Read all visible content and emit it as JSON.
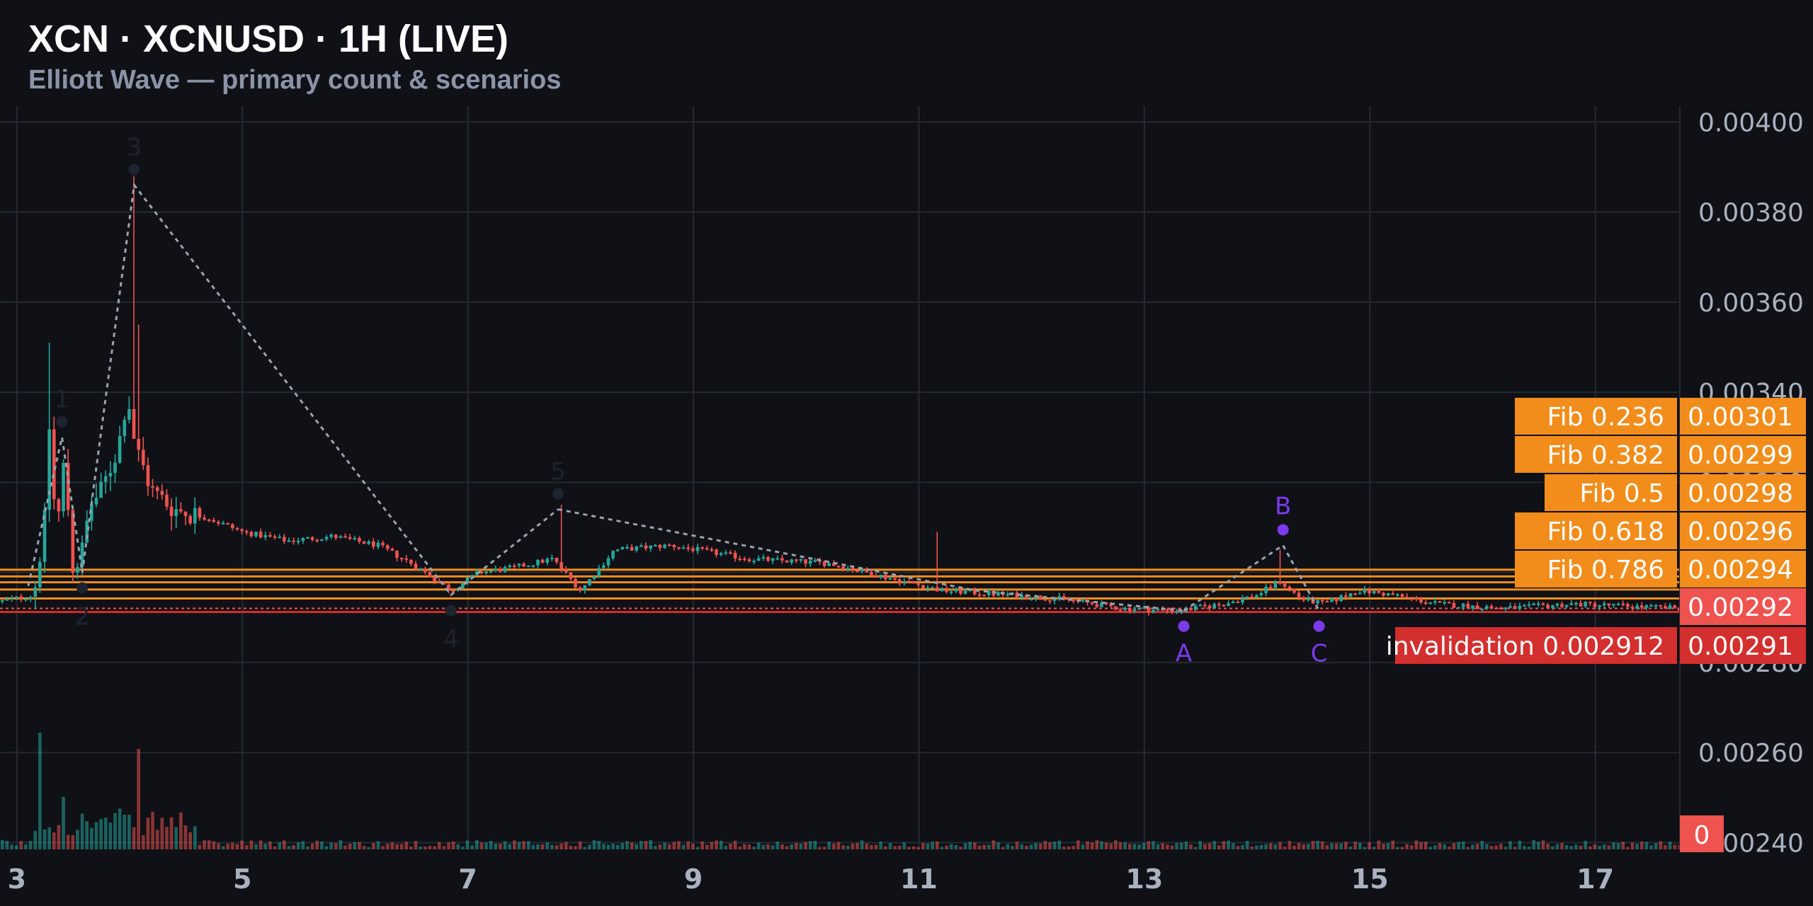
{
  "header": {
    "title": "XCN · XCNUSD · 1H (LIVE)",
    "subtitle": "Elliott Wave — primary count & scenarios"
  },
  "colors": {
    "background": "#0f1117",
    "grid": "#232a33",
    "up": "#26a69a",
    "down": "#ef5350",
    "fib": "#f28c1b",
    "invalidation": "#d32f2f",
    "wave_primary": "#1c2430",
    "wave_alt": "#7c3aed",
    "wave_path": "#9aa3b0"
  },
  "chart_data": {
    "type": "candlestick",
    "x_unit": "day",
    "xlim": [
      2.85,
      17.75
    ],
    "ylim": [
      0.002385,
      0.004035
    ],
    "x_ticks": [
      {
        "x": 3,
        "label": "3"
      },
      {
        "x": 5,
        "label": "5"
      },
      {
        "x": 7,
        "label": "7"
      },
      {
        "x": 9,
        "label": "9"
      },
      {
        "x": 11,
        "label": "11"
      },
      {
        "x": 13,
        "label": "13"
      },
      {
        "x": 15,
        "label": "15"
      },
      {
        "x": 17,
        "label": "17"
      }
    ],
    "y_ticks": [
      {
        "y": 0.0024,
        "label": "0.00240"
      },
      {
        "y": 0.0026,
        "label": "0.00260"
      },
      {
        "y": 0.0028,
        "label": "0.00280"
      },
      {
        "y": 0.003,
        "label": "0.00300"
      },
      {
        "y": 0.0032,
        "label": "0.00320"
      },
      {
        "y": 0.0034,
        "label": "0.00340"
      },
      {
        "y": 0.0036,
        "label": "0.00360"
      },
      {
        "y": 0.0038,
        "label": "0.00380"
      },
      {
        "y": 0.004,
        "label": "0.00400"
      }
    ],
    "price_path": [
      [
        2.85,
        0.002935
      ],
      [
        3.15,
        0.00295
      ],
      [
        3.25,
        0.00312
      ],
      [
        3.28,
        0.00335
      ],
      [
        3.35,
        0.00308
      ],
      [
        3.42,
        0.00325
      ],
      [
        3.5,
        0.003
      ],
      [
        3.58,
        0.00305
      ],
      [
        3.65,
        0.00315
      ],
      [
        3.75,
        0.00318
      ],
      [
        3.9,
        0.00328
      ],
      [
        3.98,
        0.0034
      ],
      [
        4.05,
        0.00328
      ],
      [
        4.2,
        0.00318
      ],
      [
        4.4,
        0.00314
      ],
      [
        4.7,
        0.00312
      ],
      [
        5.0,
        0.00309
      ],
      [
        5.4,
        0.00307
      ],
      [
        5.8,
        0.00308
      ],
      [
        6.2,
        0.00306
      ],
      [
        6.5,
        0.00302
      ],
      [
        6.85,
        0.00296
      ],
      [
        7.1,
        0.003
      ],
      [
        7.4,
        0.00301
      ],
      [
        7.75,
        0.00303
      ],
      [
        8.0,
        0.00296
      ],
      [
        8.3,
        0.00305
      ],
      [
        8.8,
        0.00306
      ],
      [
        9.5,
        0.00303
      ],
      [
        10.2,
        0.00302
      ],
      [
        10.7,
        0.00299
      ],
      [
        11.2,
        0.00296
      ],
      [
        11.8,
        0.00295
      ],
      [
        12.3,
        0.00294
      ],
      [
        12.8,
        0.00292
      ],
      [
        13.3,
        0.002915
      ],
      [
        13.7,
        0.00293
      ],
      [
        14.0,
        0.00295
      ],
      [
        14.2,
        0.00298
      ],
      [
        14.4,
        0.00294
      ],
      [
        14.6,
        0.00293
      ],
      [
        14.9,
        0.00296
      ],
      [
        15.2,
        0.00295
      ],
      [
        15.6,
        0.00293
      ],
      [
        16.2,
        0.00292
      ],
      [
        16.8,
        0.00293
      ],
      [
        17.3,
        0.002925
      ],
      [
        17.75,
        0.00292
      ]
    ],
    "spikes": [
      {
        "x": 3.25,
        "high": 0.003315
      },
      {
        "x": 3.27,
        "high": 0.00351
      },
      {
        "x": 4.0,
        "high": 0.00352
      },
      {
        "x": 4.03,
        "high": 0.00388
      },
      {
        "x": 4.06,
        "high": 0.00355
      },
      {
        "x": 7.8,
        "high": 0.00315
      },
      {
        "x": 11.15,
        "high": 0.00309
      },
      {
        "x": 14.2,
        "high": 0.00305
      }
    ],
    "volume_spikes": [
      {
        "x": 3.2,
        "vol": 1.0
      },
      {
        "x": 4.04,
        "vol": 0.86
      },
      {
        "x": 3.4,
        "vol": 0.45
      },
      {
        "x": 3.9,
        "vol": 0.35
      }
    ],
    "waves_primary": [
      {
        "label": "1",
        "x": 3.4,
        "y": 0.0033
      },
      {
        "label": "2",
        "x": 3.58,
        "y": 0.003
      },
      {
        "label": "3",
        "x": 4.04,
        "y": 0.00386
      },
      {
        "label": "4",
        "x": 6.85,
        "y": 0.00295
      },
      {
        "label": "5",
        "x": 7.8,
        "y": 0.00314
      }
    ],
    "waves_corrective": [
      {
        "label": "A",
        "x": 13.35,
        "y": 0.002915
      },
      {
        "label": "B",
        "x": 14.23,
        "y": 0.00306
      },
      {
        "label": "C",
        "x": 14.55,
        "y": 0.002915
      }
    ],
    "fib_levels": [
      {
        "label": "Fib 0.236",
        "value": 0.003006,
        "price_label": "0.00301"
      },
      {
        "label": "Fib 0.382",
        "value": 0.002991,
        "price_label": "0.00299"
      },
      {
        "label": "Fib 0.5",
        "value": 0.002978,
        "price_label": "0.00298"
      },
      {
        "label": "Fib 0.618",
        "value": 0.002962,
        "price_label": "0.00296"
      },
      {
        "label": "Fib 0.786",
        "value": 0.002942,
        "price_label": "0.00294"
      }
    ],
    "current_price": {
      "value": 0.00292,
      "label": "0.00292"
    },
    "invalidation": {
      "label": "invalidation 0.002912",
      "value": 0.002912,
      "price_label": "0.00291"
    },
    "volume_label": "0"
  }
}
